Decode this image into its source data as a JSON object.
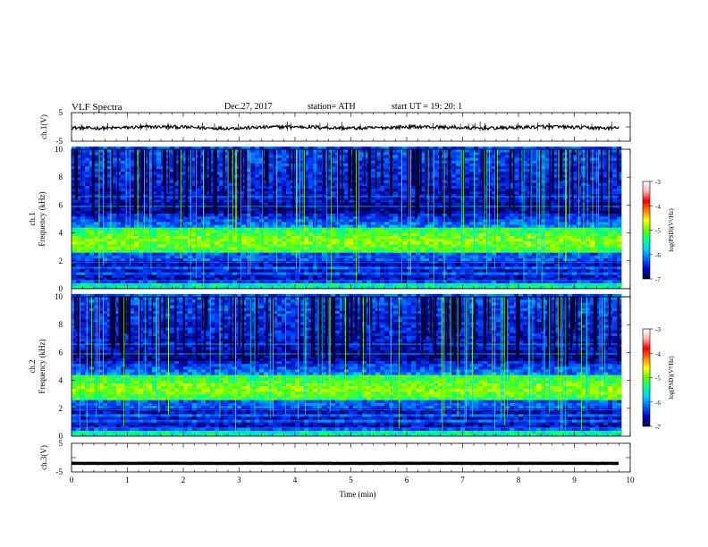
{
  "header": {
    "title": "VLF  Spectra",
    "date": "Dec.27, 2017",
    "station": "station= ATH",
    "start": "start  UT  =    19: 20: 1"
  },
  "chart_data": [
    {
      "type": "line",
      "ylabel": "ch.1(V)",
      "ylim": [
        -5,
        5
      ],
      "yticks": [
        "5",
        "-5"
      ],
      "xlim": [
        0,
        10
      ],
      "series": [
        {
          "values_approx_level": -0.2
        }
      ]
    },
    {
      "type": "heatmap",
      "ylabel_line1": "ch.1",
      "ylabel_line2": "Frequency  (kHz)",
      "ylim": [
        0,
        10
      ],
      "yticks": [
        "0",
        "2",
        "4",
        "6",
        "8",
        "10"
      ],
      "xlim": [
        0,
        10
      ],
      "data_end_min": 9.8,
      "intense_band_khz": [
        2.5,
        4.5
      ],
      "colorbar": {
        "label": "log(PSD)(V²/Hz)",
        "ticks": [
          "-3",
          "-4",
          "-5",
          "-6",
          "-7"
        ],
        "range": [
          -7,
          -3
        ]
      }
    },
    {
      "type": "heatmap",
      "ylabel_line1": "ch.2",
      "ylabel_line2": "Frequency  (kHz)",
      "ylim": [
        0,
        10
      ],
      "yticks": [
        "0",
        "2",
        "4",
        "6",
        "8",
        "10"
      ],
      "xlim": [
        0,
        10
      ],
      "data_end_min": 9.8,
      "intense_band_khz": [
        2.5,
        4.5
      ],
      "colorbar": {
        "label": "log(PSD)(V²/Hz)",
        "ticks": [
          "-3",
          "-4",
          "-5",
          "-6",
          "-7"
        ],
        "range": [
          -7,
          -3
        ]
      }
    },
    {
      "type": "line",
      "ylabel": "ch.3(V)",
      "ylim": [
        -5,
        5
      ],
      "yticks": [
        "5",
        "-5"
      ],
      "xlim": [
        0,
        10
      ],
      "series": [
        {
          "values_approx_level": -2
        }
      ]
    }
  ],
  "xaxis": {
    "label": "Time  (min)",
    "ticks": [
      "0",
      "1",
      "2",
      "3",
      "4",
      "5",
      "6",
      "7",
      "8",
      "9",
      "10"
    ]
  },
  "colors": {
    "spectrum": [
      "#000040",
      "#0000c8",
      "#0064ff",
      "#00c8ff",
      "#00ff96",
      "#64ff00",
      "#ffff00",
      "#ff8000",
      "#ff0000",
      "#ffb4b4",
      "#ffffff"
    ]
  }
}
